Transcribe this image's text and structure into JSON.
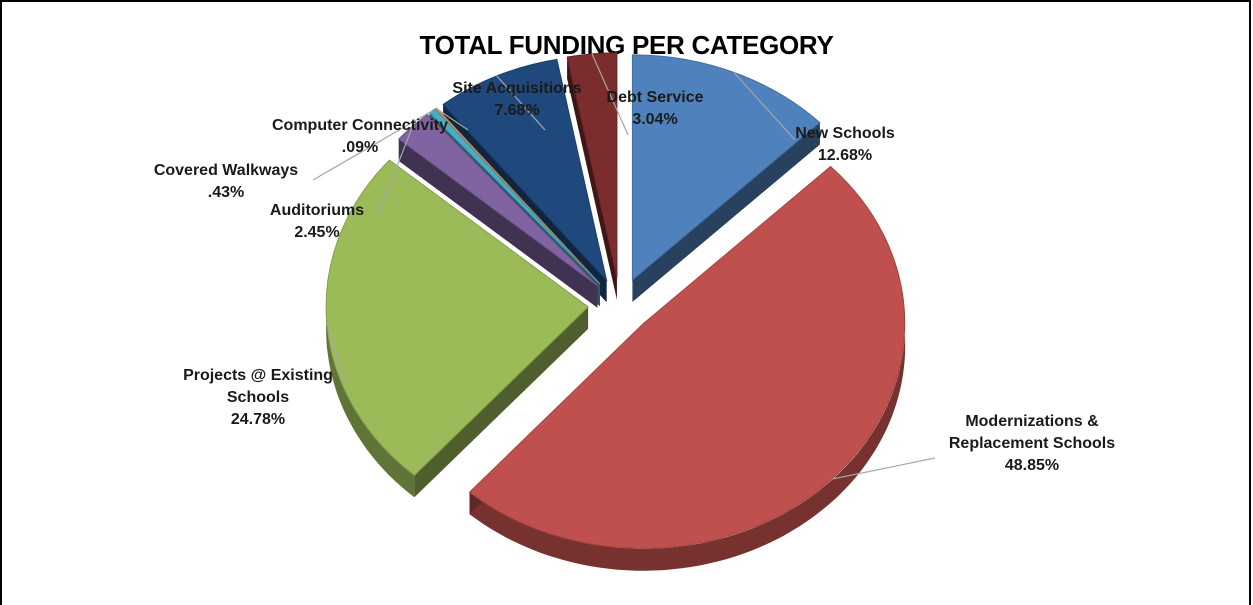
{
  "chart_data": {
    "type": "pie",
    "title": "TOTAL FUNDING PER CATEGORY",
    "slices": [
      {
        "name": "New Schools",
        "value": 12.68,
        "value_label": "12.68%",
        "color": "#4f81bd",
        "exploded": true
      },
      {
        "name": "Modernizations & Replacement Schools",
        "value": 48.85,
        "value_label": "48.85%",
        "color": "#c0504d",
        "exploded": true
      },
      {
        "name": "Projects @ Existing Schools",
        "value": 24.78,
        "value_label": "24.78%",
        "color": "#9bbb59",
        "exploded": true
      },
      {
        "name": "Auditoriums",
        "value": 2.45,
        "value_label": "2.45%",
        "color": "#8064a2",
        "exploded": true
      },
      {
        "name": "Covered Walkways",
        "value": 0.43,
        "value_label": ".43%",
        "color": "#4bacc6",
        "exploded": true
      },
      {
        "name": "Computer Connectivity",
        "value": 0.09,
        "value_label": ".09%",
        "color": "#f79646",
        "exploded": true
      },
      {
        "name": "Site Acquisitions",
        "value": 7.68,
        "value_label": "7.68%",
        "color": "#1f497d",
        "exploded": true
      },
      {
        "name": "Debt Service",
        "value": 3.04,
        "value_label": "3.04%",
        "color": "#7b2c2c",
        "exploded": true
      }
    ],
    "label_lines": [
      [
        "New Schools",
        "12.68%"
      ],
      [
        "Modernizations &",
        "Replacement Schools",
        "48.85%"
      ],
      [
        "Projects @ Existing",
        "Schools",
        "24.78%"
      ],
      [
        "Auditoriums",
        "2.45%"
      ],
      [
        "Covered Walkways",
        ".43%"
      ],
      [
        "Computer Connectivity",
        ".09%"
      ],
      [
        "Site Acquisitions",
        "7.68%"
      ],
      [
        "Debt Service",
        "3.04%"
      ]
    ],
    "style": "3d-exploded",
    "legend": "none"
  }
}
